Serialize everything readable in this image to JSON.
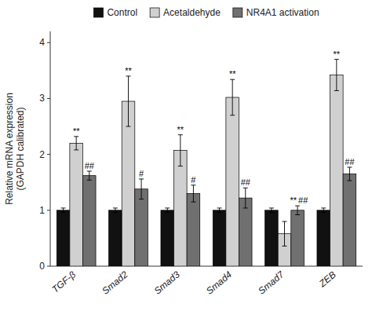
{
  "chart_data": {
    "type": "bar",
    "categories": [
      "TGF-β",
      "Smad2",
      "Smad3",
      "Smad4",
      "Smad7",
      "ZEB"
    ],
    "series": [
      {
        "name": "Control",
        "color": "#111111",
        "values": [
          1.0,
          1.0,
          1.0,
          1.0,
          1.0,
          1.0
        ],
        "errors": [
          0.04,
          0.04,
          0.04,
          0.04,
          0.04,
          0.04
        ]
      },
      {
        "name": "Acetaldehyde",
        "color": "#d0d0d0",
        "values": [
          2.2,
          2.95,
          2.07,
          3.02,
          0.58,
          3.42
        ],
        "errors": [
          0.12,
          0.45,
          0.28,
          0.32,
          0.22,
          0.28
        ]
      },
      {
        "name": "NR4A1 activation",
        "color": "#707070",
        "values": [
          1.62,
          1.38,
          1.3,
          1.22,
          1.0,
          1.65
        ],
        "errors": [
          0.08,
          0.18,
          0.15,
          0.18,
          0.08,
          0.12
        ]
      }
    ],
    "annotations": [
      {
        "text": "**",
        "category": "TGF-β",
        "series": "Acetaldehyde"
      },
      {
        "text": "##",
        "category": "TGF-β",
        "series": "NR4A1 activation"
      },
      {
        "text": "**",
        "category": "Smad2",
        "series": "Acetaldehyde"
      },
      {
        "text": "#",
        "category": "Smad2",
        "series": "NR4A1 activation"
      },
      {
        "text": "**",
        "category": "Smad3",
        "series": "Acetaldehyde"
      },
      {
        "text": "#",
        "category": "Smad3",
        "series": "NR4A1 activation"
      },
      {
        "text": "**",
        "category": "Smad4",
        "series": "Acetaldehyde"
      },
      {
        "text": "##",
        "category": "Smad4",
        "series": "NR4A1 activation"
      },
      {
        "text": "**",
        "category": "Smad7",
        "series": "NR4A1 activation"
      },
      {
        "text": "##",
        "category": "Smad7",
        "series": "NR4A1 activation"
      },
      {
        "text": "**",
        "category": "ZEB",
        "series": "Acetaldehyde"
      },
      {
        "text": "##",
        "category": "ZEB",
        "series": "NR4A1 activation"
      }
    ],
    "ylabel": "Relative mRNA expression\n(GAPDH calibrated)",
    "ylim": [
      0,
      4.2
    ],
    "yticks": [
      0,
      1,
      2,
      3,
      4
    ],
    "grid": false,
    "legend": "top"
  }
}
